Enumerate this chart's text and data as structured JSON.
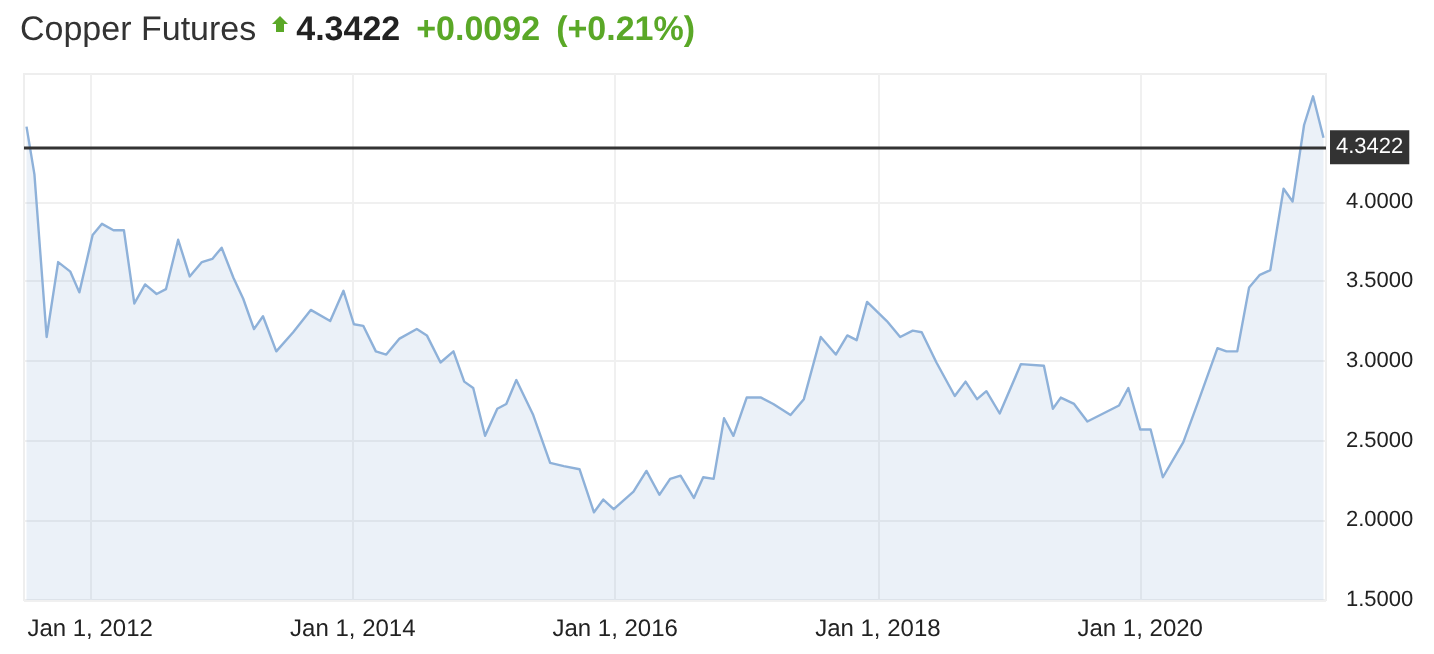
{
  "chart_data": {
    "type": "area",
    "title": "Copper Futures",
    "annotations": [
      "4.3422",
      "+0.0092",
      "(+0.21%)"
    ],
    "x": [
      "2011-07-08",
      "2011-07-30",
      "2011-09-02",
      "2011-10-04",
      "2011-11-07",
      "2011-12-02",
      "2012-01-08",
      "2012-02-03",
      "2012-03-06",
      "2012-04-04",
      "2012-05-03",
      "2012-06-02",
      "2012-07-04",
      "2012-07-30",
      "2012-09-02",
      "2012-10-04",
      "2012-11-07",
      "2012-12-06",
      "2013-01-01",
      "2013-02-03",
      "2013-03-02",
      "2013-04-01",
      "2013-04-26",
      "2013-06-02",
      "2013-07-19",
      "2013-09-06",
      "2013-10-30",
      "2013-12-06",
      "2014-01-04",
      "2014-01-30",
      "2014-03-06",
      "2014-04-04",
      "2014-05-11",
      "2014-06-28",
      "2014-07-26",
      "2014-09-02",
      "2014-10-08",
      "2014-11-07",
      "2014-12-02",
      "2015-01-04",
      "2015-02-07",
      "2015-03-04",
      "2015-04-01",
      "2015-05-18",
      "2015-07-04",
      "2015-08-11",
      "2015-09-24",
      "2015-11-03",
      "2015-11-29",
      "2015-12-28",
      "2016-02-21",
      "2016-03-28",
      "2016-05-03",
      "2016-06-02",
      "2016-07-01",
      "2016-08-07",
      "2016-09-02",
      "2016-10-01",
      "2016-10-30",
      "2016-11-25",
      "2017-01-01",
      "2017-02-10",
      "2017-03-16",
      "2017-05-03",
      "2017-06-09",
      "2017-07-26",
      "2017-09-06",
      "2017-10-08",
      "2017-11-03",
      "2017-12-02",
      "2018-01-26",
      "2018-03-04",
      "2018-04-08",
      "2018-05-03",
      "2018-06-13",
      "2018-08-03",
      "2018-09-02",
      "2018-10-04",
      "2018-10-30",
      "2018-12-06",
      "2019-02-03",
      "2019-04-08",
      "2019-05-03",
      "2019-05-25",
      "2019-07-01",
      "2019-08-07",
      "2019-11-03",
      "2019-11-29",
      "2020-01-01",
      "2020-01-30",
      "2020-03-04",
      "2020-04-30",
      "2020-06-13",
      "2020-08-03",
      "2020-08-28",
      "2020-09-27",
      "2020-10-30",
      "2020-11-29",
      "2020-12-28",
      "2021-02-03",
      "2021-02-28",
      "2021-04-01",
      "2021-04-26",
      "2021-05-25"
    ],
    "series": [
      {
        "color": "#8eb1d9",
        "values": [
          4.47,
          4.17,
          3.15,
          3.62,
          3.56,
          3.43,
          3.79,
          3.86,
          3.82,
          3.82,
          3.36,
          3.48,
          3.42,
          3.45,
          3.76,
          3.53,
          3.62,
          3.64,
          3.71,
          3.52,
          3.39,
          3.2,
          3.28,
          3.06,
          3.18,
          3.32,
          3.25,
          3.44,
          3.23,
          3.22,
          3.06,
          3.04,
          3.14,
          3.2,
          3.16,
          2.99,
          3.06,
          2.87,
          2.83,
          2.53,
          2.7,
          2.73,
          2.88,
          2.66,
          2.36,
          2.34,
          2.32,
          2.05,
          2.13,
          2.07,
          2.18,
          2.31,
          2.16,
          2.26,
          2.28,
          2.14,
          2.27,
          2.26,
          2.64,
          2.53,
          2.77,
          2.77,
          2.73,
          2.66,
          2.76,
          3.15,
          3.04,
          3.16,
          3.13,
          3.37,
          3.25,
          3.15,
          3.19,
          3.18,
          2.99,
          2.78,
          2.87,
          2.76,
          2.81,
          2.67,
          2.98,
          2.97,
          2.7,
          2.77,
          2.73,
          2.62,
          2.72,
          2.83,
          2.57,
          2.57,
          2.27,
          2.49,
          2.76,
          3.08,
          3.06,
          3.06,
          3.46,
          3.54,
          3.57,
          4.08,
          4.0,
          4.48,
          4.66,
          4.4
        ]
      }
    ],
    "xlim": [
      "2011-07-01",
      "2021-06-01"
    ],
    "xticks": [
      {
        "value": "2012-01-01",
        "label": "Jan 1, 2012"
      },
      {
        "value": "2014-01-01",
        "label": "Jan 1, 2014"
      },
      {
        "value": "2016-01-01",
        "label": "Jan 1, 2016"
      },
      {
        "value": "2018-01-01",
        "label": "Jan 1, 2018"
      },
      {
        "value": "2020-01-01",
        "label": "Jan 1, 2020"
      }
    ],
    "ylim": [
      1.5,
      4.8
    ],
    "yticks": [
      {
        "value": 1.5,
        "label": "1.5000"
      },
      {
        "value": 2,
        "label": "2.0000"
      },
      {
        "value": 2.5,
        "label": "2.5000"
      },
      {
        "value": 3,
        "label": "3.0000"
      },
      {
        "value": 3.5,
        "label": "3.5000"
      },
      {
        "value": 4,
        "label": "4.0000"
      }
    ],
    "ref_lines": [
      {
        "axis": "y",
        "value": 4.3422,
        "label": "4.3422",
        "color": "#333333"
      }
    ],
    "grid": true
  }
}
